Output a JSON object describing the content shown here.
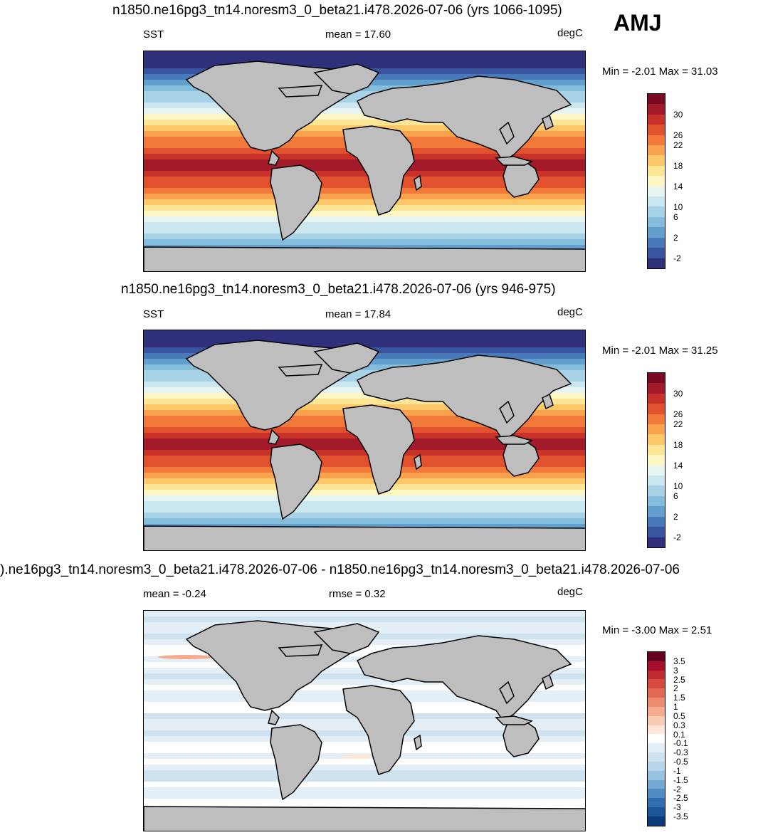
{
  "season": "AMJ",
  "panels": [
    {
      "title": "n1850.ne16pg3_tn14.noresm3_0_beta21.i478.2026-07-06 (yrs 1066-1095)",
      "left_label": "SST",
      "center_label": "mean =  17.60",
      "units": "degC",
      "minmax": "Min =  -2.01 Max =  31.03",
      "colorbar_labels": [
        "30",
        "26",
        "22",
        "18",
        "14",
        "10",
        "6",
        "2",
        "-2"
      ],
      "colors": [
        "#7a0a24",
        "#a31b2a",
        "#c9322b",
        "#e2512d",
        "#f17a3a",
        "#f9a24e",
        "#fcc768",
        "#fde596",
        "#fbf6c2",
        "#e7f4f2",
        "#cae7ef",
        "#a8d3e6",
        "#84bddb",
        "#629fcd",
        "#4879b8",
        "#3a559f",
        "#2f2f7a"
      ]
    },
    {
      "title": "n1850.ne16pg3_tn14.noresm3_0_beta21.i478.2026-07-06 (yrs 946-975)",
      "left_label": "SST",
      "center_label": "mean =  17.84",
      "units": "degC",
      "minmax": "Min =  -2.01 Max =  31.25",
      "colorbar_labels": [
        "30",
        "26",
        "22",
        "18",
        "14",
        "10",
        "6",
        "2",
        "-2"
      ],
      "colors": [
        "#7a0a24",
        "#a31b2a",
        "#c9322b",
        "#e2512d",
        "#f17a3a",
        "#f9a24e",
        "#fcc768",
        "#fde596",
        "#fbf6c2",
        "#e7f4f2",
        "#cae7ef",
        "#a8d3e6",
        "#84bddb",
        "#629fcd",
        "#4879b8",
        "#3a559f",
        "#2f2f7a"
      ]
    },
    {
      "title": ").ne16pg3_tn14.noresm3_0_beta21.i478.2026-07-06 - n1850.ne16pg3_tn14.noresm3_0_beta21.i478.2026-07-06",
      "left_label": "mean =  -0.24",
      "center_label": "rmse =   0.32",
      "units": "degC",
      "minmax": "Min =  -3.00 Max =   2.51",
      "colorbar_labels": [
        "3.5",
        "3",
        "2.5",
        "2",
        "1.5",
        "1",
        "0.5",
        "0.3",
        "0.1",
        "-0.1",
        "-0.3",
        "-0.5",
        "-1",
        "-1.5",
        "-2",
        "-2.5",
        "-3",
        "-3.5"
      ],
      "colors": [
        "#67001f",
        "#a50f2b",
        "#c22a32",
        "#d6493f",
        "#e26a55",
        "#ec8b6e",
        "#f4ab8e",
        "#f9cbb3",
        "#fde5d8",
        "#ffffff",
        "#e3eef6",
        "#cfe2f0",
        "#b8d6ea",
        "#97c3e0",
        "#72a9d3",
        "#4f8cc2",
        "#3070b0",
        "#1b5497",
        "#0b3b78"
      ]
    }
  ]
}
